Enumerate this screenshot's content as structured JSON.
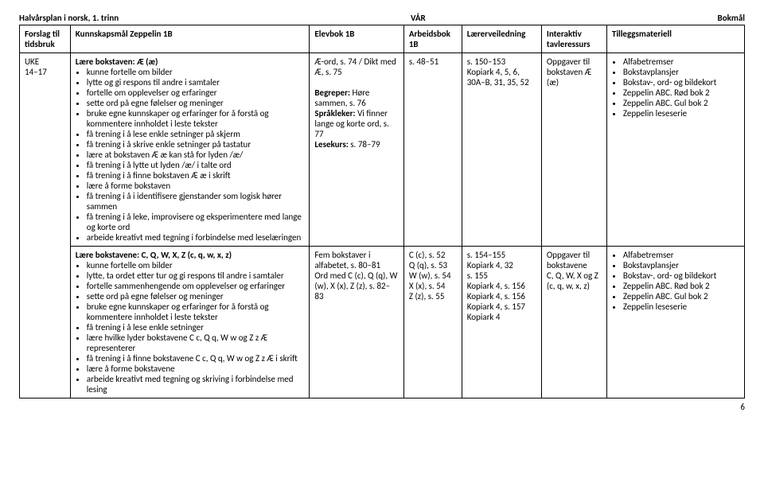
{
  "doc_header": {
    "left": "Halvårsplan i norsk, 1. trinn",
    "center": "VÅR",
    "right": "Bokmål"
  },
  "table_headers": {
    "c0": "Forslag til tidsbruk",
    "c1": "Kunnskapsmål Zeppelin 1B",
    "c2": "Elevbok 1B",
    "c3": "Arbeidsbok 1B",
    "c4": "Lærerveiledning",
    "c5": "Interaktiv tavleressurs",
    "c6": "Tilleggsmateriell"
  },
  "row1": {
    "uke_label": "UKE",
    "uke_range": "14–17",
    "lead": "Lære bokstaven: Æ (æ)",
    "bullets": [
      "kunne fortelle om bilder",
      "lytte og gi respons til andre i samtaler",
      "fortelle om opplevelser og erfaringer",
      "sette ord på egne følelser og meninger",
      "bruke egne kunnskaper og erfaringer for å forstå og kommentere innholdet i leste tekster",
      "få trening i å lese enkle setninger på skjerm",
      "få trening i å skrive enkle setninger på tastatur",
      "lære at bokstaven Æ æ kan stå for lyden /æ/",
      "få trening i å lytte ut lyden /æ/ i talte ord",
      "få trening i å finne bokstaven Æ æ i skrift",
      "lære å forme bokstaven",
      "få trening i å i identifisere gjenstander som logisk hører sammen",
      "få trening i å leke, improvisere og eksperimentere med lange og korte ord",
      "arbeide kreativt med tegning i forbindelse med leselæringen"
    ],
    "elevbok": {
      "l1": "Æ-ord, s. 74 / Dikt med Æ, s. 75",
      "l2a": "Begreper:",
      "l2b": " Høre sammen, s. 76",
      "l3a": "Språkleker:",
      "l3b": " Vi finner lange og korte ord, s. 77",
      "l4a": "Lesekurs:",
      "l4b": " s. 78–79"
    },
    "arbeidsbok": "s. 48–51",
    "lærerveiledning": {
      "l1": "s. 150–153",
      "l2": "Kopiark 4, 5, 6, 30A–B, 31, 35, 52"
    },
    "tavle": {
      "l1": "Oppgaver til bokstaven Æ (æ)"
    },
    "tillegg": [
      "Alfabetremser",
      "Bokstavplansjer",
      "Bokstav-, ord- og bildekort",
      "Zeppelin ABC. Rød bok 2",
      "Zeppelin ABC. Gul bok 2",
      "Zeppelin leseserie"
    ]
  },
  "row2": {
    "lead": "Lære bokstavene: C, Q, W, X, Z (c, q, w, x, z)",
    "bullets": [
      "kunne fortelle om bilder",
      "lytte, ta ordet etter tur og gi respons til andre i samtaler",
      "fortelle sammenhengende om opplevelser og erfaringer",
      "sette ord på egne følelser og meninger",
      "bruke egne kunnskaper og erfaringer for å forstå og kommentere innholdet i leste tekster",
      "få trening i å lese enkle setninger",
      "lære hvilke lyder bokstavene C c, Q q, W w og Z z Æ representerer",
      "få trening i å finne bokstavene C c, Q q, W w og Z z Æ i skrift",
      "lære å forme bokstavene",
      "arbeide kreativt med tegning og skriving i forbindelse med lesing"
    ],
    "elevbok": {
      "l1": "Fem bokstaver i alfabetet, s. 80–81",
      "l2": "Ord med C (c), Q (q), W (w), X (x), Z (z), s. 82–83"
    },
    "arbeidsbok": {
      "l1": "C (c), s. 52",
      "l2": "Q (q), s. 53",
      "l3": "W (w), s. 54",
      "l4": "X (x), s. 54",
      "l5": "Z (z), s. 55"
    },
    "lærerveiledning": {
      "l1": "s. 154–155",
      "l2": "Kopiark 4, 32",
      "l3": "s. 155",
      "l4": "Kopiark 4, s. 156",
      "l5": "Kopiark 4, s. 156",
      "l6": "Kopiark 4, s. 157",
      "l7": "Kopiark 4"
    },
    "tavle": {
      "l1": "Oppgaver til bokstavene",
      "l2": "C, Q, W, X og Z (c, q, w, x, z)"
    },
    "tillegg": [
      "Alfabetremser",
      "Bokstavplansjer",
      "Bokstav-, ord- og bildekort",
      "Zeppelin ABC. Rød bok 2",
      "Zeppelin ABC. Gul bok 2",
      "Zeppelin leseserie"
    ]
  },
  "page_number": "6"
}
